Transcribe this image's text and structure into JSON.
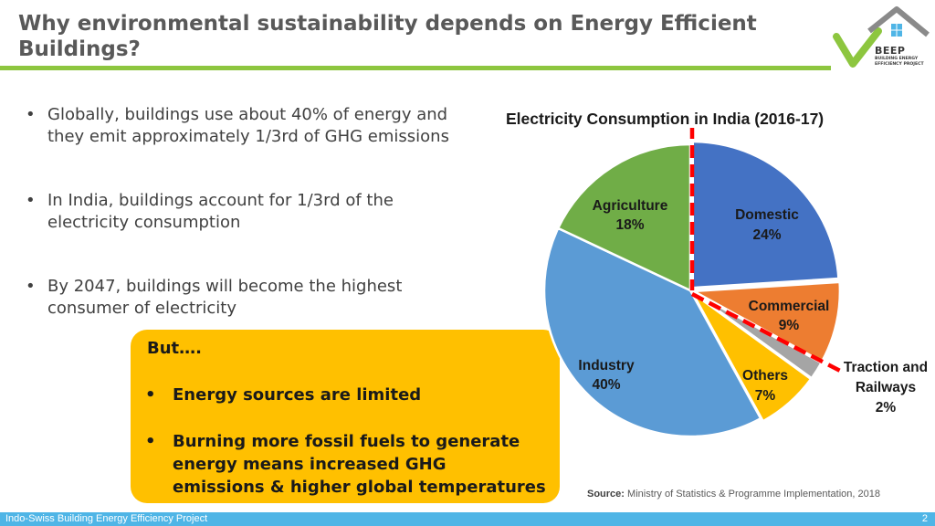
{
  "slide": {
    "title_line1": "Why environmental sustainability depends on Energy Efficient",
    "title_line2": "Buildings?",
    "logo": {
      "brand": "BEEP",
      "sub1": "BUILDING ENERGY",
      "sub2": "EFFICIENCY PROJECT"
    },
    "bullets": [
      {
        "line1": "Globally, buildings use about 40% of energy and",
        "line2": "they emit approximately 1/3rd of GHG emissions"
      },
      {
        "line1": "In India, buildings account for 1/3rd of the",
        "line2": "electricity consumption"
      },
      {
        "line1": "By 2047, buildings will become the highest",
        "line2": "consumer of electricity"
      }
    ],
    "callout": {
      "heading": "But….",
      "items": [
        {
          "line1": "Energy sources are limited"
        },
        {
          "line1": "Burning more fossil fuels to generate",
          "line2": "energy means increased GHG",
          "line3": "emissions & higher global temperatures"
        }
      ]
    },
    "source_label": "Source:",
    "source_text": "Ministry of Statistics & Programme Implementation, 2018",
    "footer": {
      "text": "Indo-Swiss Building Energy Efficiency Project",
      "page": "2"
    },
    "colors": {
      "title": "#595959",
      "accent_green": "#8dc63f",
      "callout": "#ffc000",
      "footer": "#4fb5e6",
      "divider": "#ff0000"
    }
  },
  "chart_data": {
    "type": "pie",
    "title": "Electricity Consumption in India (2016-17)",
    "categories": [
      "Domestic",
      "Commercial",
      "Traction and Railways",
      "Others",
      "Industry",
      "Agriculture"
    ],
    "values": [
      24,
      9,
      2,
      7,
      40,
      18
    ],
    "value_suffix": "%",
    "colors": [
      "#4472c4",
      "#ed7d31",
      "#a5a5a5",
      "#ffc000",
      "#5b9bd5",
      "#70ad47"
    ],
    "start_angle_deg": 0,
    "direction": "clockwise",
    "annotations": [
      "red dashed vertical line at top of pie",
      "red dashed line between Commercial and Traction and Railways"
    ]
  }
}
